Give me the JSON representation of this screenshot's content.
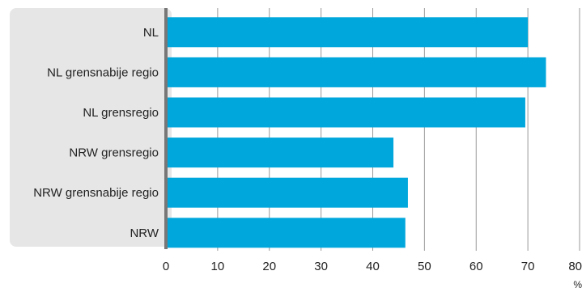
{
  "chart_data": {
    "type": "bar",
    "orientation": "horizontal",
    "categories": [
      "NL",
      "NL grensnabije regio",
      "NL grensregio",
      "NRW grensregio",
      "NRW grensnabije regio",
      "NRW"
    ],
    "values": [
      70,
      73.5,
      69.5,
      44,
      46.8,
      46.3
    ],
    "xlim": [
      0,
      80
    ],
    "xticks": [
      "0",
      "10",
      "20",
      "30",
      "40",
      "50",
      "60",
      "70",
      "80"
    ],
    "unit": "%",
    "grid": "vertical",
    "colors": {
      "bar": "#00a7dc",
      "label_panel": "#e6e6e6",
      "axis": "#777777",
      "grid": "#999999"
    }
  }
}
